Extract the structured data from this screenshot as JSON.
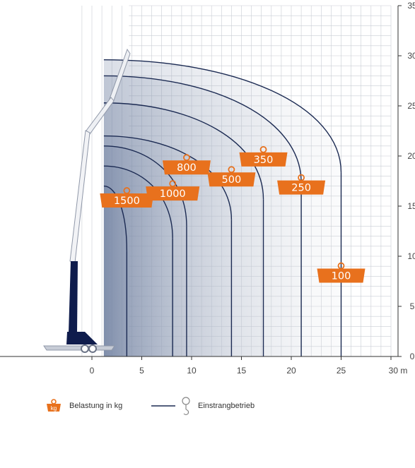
{
  "chart_data": {
    "type": "area",
    "xlim": [
      0,
      30
    ],
    "ylim": [
      0,
      35
    ],
    "x_ticks": [
      "0",
      "5",
      "10",
      "15",
      "20",
      "25",
      "30 m"
    ],
    "y_ticks": [
      "0",
      "5",
      "10",
      "15",
      "20",
      "25",
      "30",
      "35"
    ],
    "grid": true,
    "series": [
      {
        "name": "1500",
        "radius": 3.5,
        "max_height": 17.0
      },
      {
        "name": "1000",
        "radius": 8.1,
        "max_height": 19.0
      },
      {
        "name": "800",
        "radius": 9.5,
        "max_height": 21.0
      },
      {
        "name": "500",
        "radius": 14.0,
        "max_height": 22.0
      },
      {
        "name": "350",
        "radius": 17.2,
        "max_height": 25.3
      },
      {
        "name": "250",
        "radius": 21.0,
        "max_height": 28.0
      },
      {
        "name": "100",
        "radius": 25.0,
        "max_height": 29.6
      }
    ],
    "weight_labels": [
      {
        "text": "1500",
        "x": 3.5,
        "y": 15.7
      },
      {
        "text": "1000",
        "x": 8.1,
        "y": 16.4
      },
      {
        "text": "800",
        "x": 9.5,
        "y": 19.0
      },
      {
        "text": "500",
        "x": 14.0,
        "y": 17.8
      },
      {
        "text": "350",
        "x": 17.2,
        "y": 19.8
      },
      {
        "text": "250",
        "x": 21.0,
        "y": 17.0
      },
      {
        "text": "100",
        "x": 25.0,
        "y": 8.2
      }
    ],
    "legend": [
      {
        "icon": "kg",
        "label": "Belastung in kg"
      },
      {
        "icon": "line-hook",
        "label": "Einstrangbetrieb"
      }
    ]
  },
  "colors": {
    "curve": "#1b2a52",
    "weight_tag": "#e8711d",
    "grid": "#c9cdd4",
    "boom_dark": "#0f1c4c",
    "fill_light": "#e2e5ea",
    "fill_dark": "#6c7d9e"
  }
}
